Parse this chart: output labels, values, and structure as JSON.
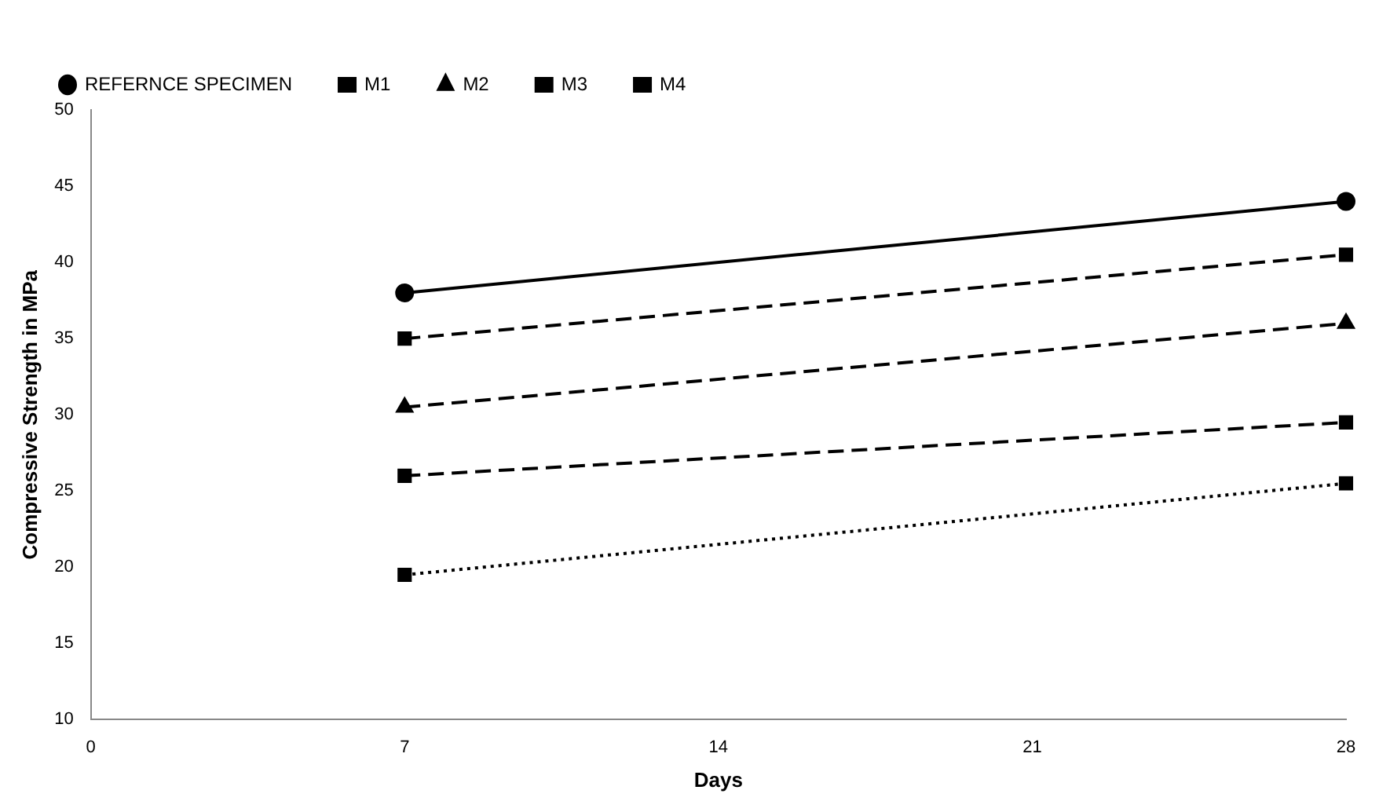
{
  "chart_data": {
    "type": "line",
    "xlabel": "Days",
    "ylabel": "Compressive Strength in MPa",
    "x": [
      7,
      28
    ],
    "xlim": [
      0,
      28
    ],
    "xticks": [
      0,
      7,
      14,
      21,
      28
    ],
    "ylim": [
      10,
      50
    ],
    "yticks": [
      10,
      15,
      20,
      25,
      30,
      35,
      40,
      45,
      50
    ],
    "grid": false,
    "legend": "top left",
    "series": [
      {
        "name": "REFERNCE SPECIMEN",
        "color": "#000000",
        "values": [
          38,
          44
        ],
        "marker": "circle",
        "line_style": "solid"
      },
      {
        "name": "M1",
        "color": "#000000",
        "values": [
          35,
          40.5
        ],
        "marker": "square",
        "line_style": "dashed"
      },
      {
        "name": "M2",
        "color": "#000000",
        "values": [
          30.5,
          36
        ],
        "marker": "triangle",
        "line_style": "dashed"
      },
      {
        "name": "M3",
        "color": "#000000",
        "values": [
          26,
          29.5
        ],
        "marker": "square",
        "line_style": "dashed"
      },
      {
        "name": "M4",
        "color": "#000000",
        "values": [
          19.5,
          25.5
        ],
        "marker": "square",
        "line_style": "dotted"
      }
    ]
  }
}
